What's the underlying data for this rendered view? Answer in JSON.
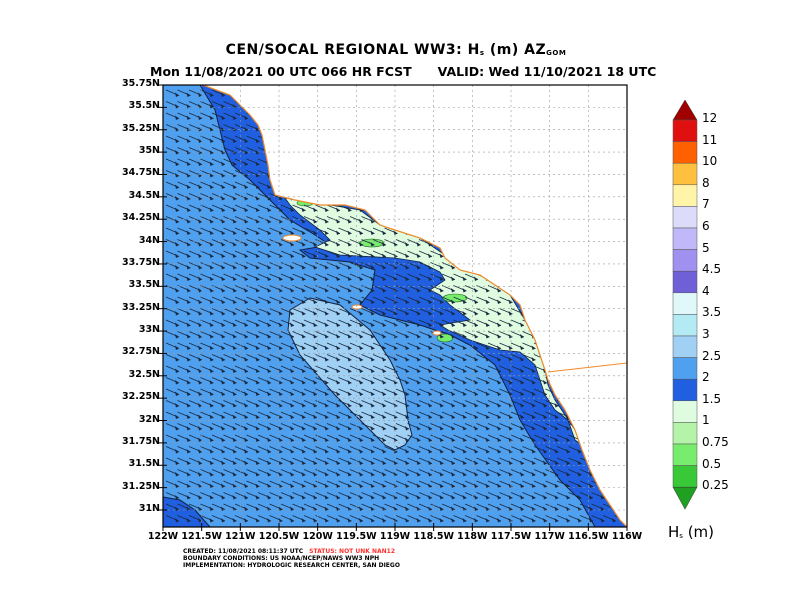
{
  "title": {
    "prefix": "CEN/SOCAL REGIONAL WW3: H",
    "sub1": "s",
    "mid": " (m) AZ",
    "sub2": "GOM"
  },
  "subtitle": {
    "run": "Mon 11/08/2021 00 UTC 066 HR FCST",
    "valid": "VALID: Wed 11/10/2021 18 UTC"
  },
  "lat_labels": [
    "35.75N",
    "35.5N",
    "35.25N",
    "35N",
    "34.75N",
    "34.5N",
    "34.25N",
    "34N",
    "33.75N",
    "33.5N",
    "33.25N",
    "33N",
    "32.75N",
    "32.5N",
    "32.25N",
    "32N",
    "31.75N",
    "31.5N",
    "31.25N",
    "31N"
  ],
  "lon_labels": [
    "122W",
    "121.5W",
    "121W",
    "120.5W",
    "120W",
    "119.5W",
    "119W",
    "118.5W",
    "118W",
    "117.5W",
    "117W",
    "116.5W",
    "116W"
  ],
  "colorbar": {
    "labels": [
      "12",
      "11",
      "10",
      "8",
      "7",
      "6",
      "5",
      "4.5",
      "4",
      "3.5",
      "3",
      "2.5",
      "2",
      "1.5",
      "1",
      "0.75",
      "0.5",
      "0.25"
    ],
    "colors": [
      "#a00000",
      "#e01010",
      "#ff6000",
      "#ffc040",
      "#fff4a8",
      "#dcdcfa",
      "#c0b8f8",
      "#a090f0",
      "#7060d8",
      "#e0f8fa",
      "#b4eaf4",
      "#a0d0f4",
      "#50a0f0",
      "#2060e0",
      "#e0fce0",
      "#b4f4a8",
      "#78ec6c",
      "#38c838",
      "#20a020"
    ],
    "unit_prefix": "H",
    "unit_sub": "s",
    "unit_suffix": " (m)"
  },
  "footer": {
    "created": "CREATED: 11/08/2021 08:11:37 UTC",
    "status": "STATUS: NOT UNK NAN12",
    "boundary": "BOUNDARY CONDITIONS: US NOAA/NCEP/NAWS WW3 NPH",
    "implementation": "IMPLEMENTATION: HYDROLOGIC RESEARCH CENTER, SAN DIEGO"
  },
  "colors": {
    "ocean_2m": "#50a0f0",
    "ocean_1_5m": "#2060e0",
    "ocean_2_5m": "#a0d0f4",
    "coastal_1m": "#e0fce0",
    "coastline": "#f08a28"
  }
}
